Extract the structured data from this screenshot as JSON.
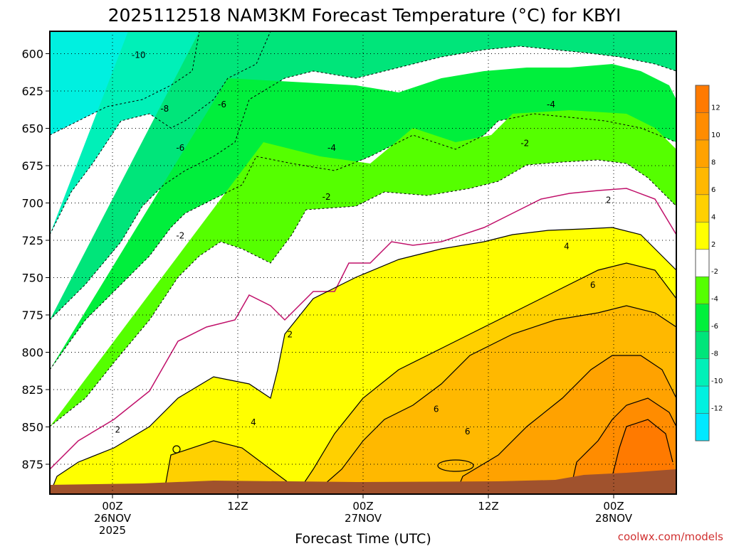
{
  "chart_data": {
    "type": "heatmap",
    "title": "2025112518 NAM3KM Forecast Temperature (°C) for KBYI",
    "xlabel": "Forecast Time (UTC)",
    "ylabel": "",
    "x_ticks": [
      {
        "hour": 6,
        "lines": [
          "00Z",
          "26NOV",
          "2025"
        ]
      },
      {
        "hour": 18,
        "lines": [
          "12Z"
        ]
      },
      {
        "hour": 30,
        "lines": [
          "00Z",
          "27NOV"
        ]
      },
      {
        "hour": 42,
        "lines": [
          "12Z"
        ]
      },
      {
        "hour": 54,
        "lines": [
          "00Z",
          "28NOV"
        ]
      }
    ],
    "xlim_hours": [
      0,
      60
    ],
    "y_ticks": [
      600,
      625,
      650,
      675,
      700,
      725,
      750,
      775,
      800,
      825,
      850,
      875
    ],
    "ylim": [
      585,
      895
    ],
    "y_inverted": true,
    "grid": true,
    "colorbar": {
      "ticks": [
        12,
        10,
        8,
        6,
        4,
        2,
        -2,
        -4,
        -6,
        -8,
        -10,
        -12
      ],
      "bands": [
        {
          "from": 12,
          "to": 14,
          "color": "#ff7a00"
        },
        {
          "from": 10,
          "to": 12,
          "color": "#ff8c00"
        },
        {
          "from": 8,
          "to": 10,
          "color": "#ffa200"
        },
        {
          "from": 6,
          "to": 8,
          "color": "#ffb800"
        },
        {
          "from": 4,
          "to": 6,
          "color": "#ffd000"
        },
        {
          "from": 2,
          "to": 4,
          "color": "#ffff00"
        },
        {
          "from": -2,
          "to": 2,
          "color": "#ffffff"
        },
        {
          "from": -4,
          "to": -2,
          "color": "#55ff00"
        },
        {
          "from": -6,
          "to": -4,
          "color": "#00ef3c"
        },
        {
          "from": -8,
          "to": -6,
          "color": "#00e57a"
        },
        {
          "from": -10,
          "to": -8,
          "color": "#00f0b8"
        },
        {
          "from": -12,
          "to": -10,
          "color": "#00f0e0"
        },
        {
          "from": -14,
          "to": -12,
          "color": "#00e8ff"
        }
      ]
    },
    "contour_labels": [
      {
        "text": "-10",
        "hour": 8.5,
        "p": 601
      },
      {
        "text": "-8",
        "hour": 11.0,
        "p": 637
      },
      {
        "text": "-6",
        "hour": 16.5,
        "p": 634
      },
      {
        "text": "-6",
        "hour": 12.5,
        "p": 663
      },
      {
        "text": "-4",
        "hour": 27.0,
        "p": 663
      },
      {
        "text": "-4",
        "hour": 48.0,
        "p": 634
      },
      {
        "text": "-2",
        "hour": 45.5,
        "p": 660
      },
      {
        "text": "-2",
        "hour": 26.5,
        "p": 696
      },
      {
        "text": "-2",
        "hour": 12.5,
        "p": 722
      },
      {
        "text": "2",
        "hour": 53.5,
        "p": 698
      },
      {
        "text": "4",
        "hour": 49.5,
        "p": 729
      },
      {
        "text": "6",
        "hour": 52.0,
        "p": 755
      },
      {
        "text": "2",
        "hour": 23.0,
        "p": 788
      },
      {
        "text": "6",
        "hour": 37.0,
        "p": 838
      },
      {
        "text": "4",
        "hour": 19.5,
        "p": 847
      },
      {
        "text": "2",
        "hour": 6.5,
        "p": 852
      },
      {
        "text": "6",
        "hour": 40.0,
        "p": 853
      }
    ]
  },
  "credit": "coolwx.com/models"
}
